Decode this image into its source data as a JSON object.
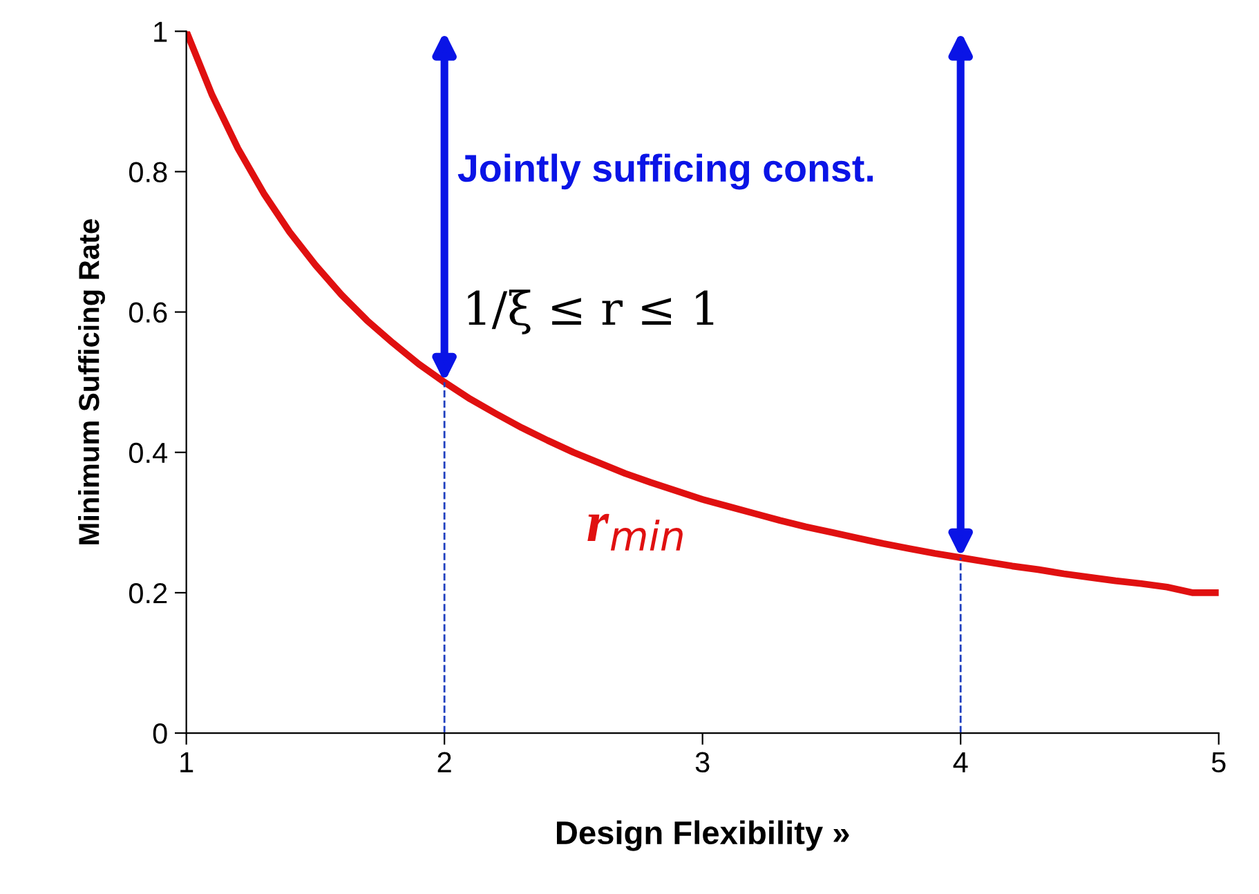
{
  "chart_data": {
    "type": "line",
    "xlabel": "Design Flexibility »",
    "ylabel": "Minimum Sufficing Rate",
    "x": [
      1,
      1.1,
      1.2,
      1.3,
      1.4,
      1.5,
      1.6,
      1.7,
      1.8,
      1.9,
      2,
      2.1,
      2.2,
      2.3,
      2.4,
      2.5,
      2.6,
      2.7,
      2.8,
      2.9,
      3,
      3.1,
      3.2,
      3.3,
      3.4,
      3.5,
      3.6,
      3.7,
      3.8,
      3.9,
      4,
      4.1,
      4.2,
      4.3,
      4.4,
      4.5,
      4.6,
      4.7,
      4.8,
      4.9,
      5
    ],
    "series": [
      {
        "name": "r$_{min}$",
        "color": "#e01010",
        "values": [
          1,
          0.909,
          0.833,
          0.769,
          0.714,
          0.667,
          0.625,
          0.588,
          0.556,
          0.526,
          0.5,
          0.476,
          0.455,
          0.435,
          0.417,
          0.4,
          0.385,
          0.37,
          0.357,
          0.345,
          0.333,
          0.323,
          0.313,
          0.303,
          0.294,
          0.286,
          0.278,
          0.27,
          0.263,
          0.256,
          0.25,
          0.244,
          0.238,
          0.233,
          0.227,
          0.222,
          0.217,
          0.213,
          0.208,
          0.2,
          0.2
        ]
      }
    ],
    "xlim": [
      1,
      5
    ],
    "xticks": [
      1,
      2,
      3,
      4,
      5
    ],
    "ylim": [
      0,
      1
    ],
    "yticks": [
      0,
      0.2,
      0.4,
      0.6,
      0.8,
      1
    ],
    "ref_lines": [
      {
        "axis": "x",
        "value": 2,
        "color": "#1f3fbf",
        "line_style": "dashed"
      },
      {
        "axis": "x",
        "value": 4,
        "color": "#1f3fbf",
        "line_style": "dashed"
      }
    ],
    "annotations": [
      "Jointly sufficing const.",
      "1/ξ ≤ r ≤ 1"
    ],
    "grid": false,
    "marker": "none",
    "line_style": "solid"
  }
}
